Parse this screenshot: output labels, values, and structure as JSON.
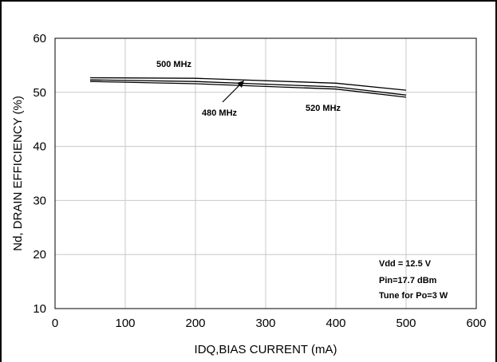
{
  "chart_data": {
    "type": "line",
    "xlabel": "IDQ,BIAS CURRENT (mA)",
    "ylabel": "Nd, DRAIN EFFICIENCY (%)",
    "xlim": [
      0,
      600
    ],
    "ylim": [
      10,
      60
    ],
    "xticks": [
      0,
      100,
      200,
      300,
      400,
      500,
      600
    ],
    "yticks": [
      10,
      20,
      30,
      40,
      50,
      60
    ],
    "grid": true,
    "series": [
      {
        "name": "500 MHz",
        "x": [
          50,
          200,
          400,
          500
        ],
        "y": [
          52.7,
          52.6,
          51.7,
          50.4
        ]
      },
      {
        "name": "480 MHz",
        "x": [
          50,
          200,
          400,
          500
        ],
        "y": [
          52.3,
          52.0,
          51.0,
          49.5
        ]
      },
      {
        "name": "520 MHz",
        "x": [
          50,
          200,
          400,
          500
        ],
        "y": [
          52.0,
          51.6,
          50.6,
          49.1
        ]
      }
    ],
    "annotations": [
      "Vdd = 12.5 V",
      "Pin=17.7 dBm",
      "Tune for Po=3 W"
    ]
  }
}
